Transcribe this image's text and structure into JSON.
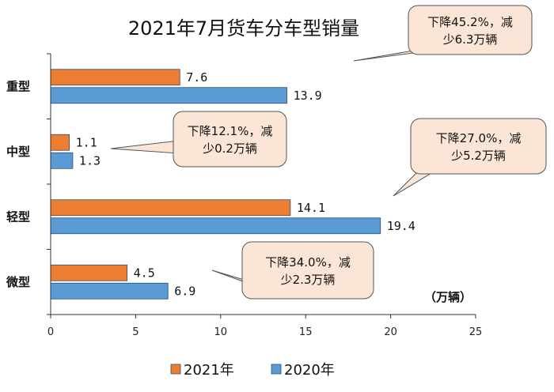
{
  "chart_data": {
    "type": "bar",
    "orientation": "horizontal",
    "title": "2021年7月货车分车型销量",
    "unit": "（万辆）",
    "categories": [
      "重型",
      "中型",
      "轻型",
      "微型"
    ],
    "series": [
      {
        "name": "2021年",
        "values": [
          7.6,
          1.1,
          14.1,
          4.5
        ],
        "value_labels": [
          "7.6",
          "1.1",
          "14.1",
          "4.5"
        ],
        "color": "#ED7D31"
      },
      {
        "name": "2020年",
        "values": [
          13.9,
          1.3,
          19.4,
          6.9
        ],
        "value_labels": [
          "13.9",
          "1.3",
          "19.4",
          "6.9"
        ],
        "color": "#5B9BD5"
      }
    ],
    "xlim": [
      0,
      25
    ],
    "xticks": [
      "0",
      "5",
      "10",
      "15",
      "20",
      "25"
    ],
    "grid": false,
    "legend_position": "bottom",
    "annotations": [
      {
        "category": "重型",
        "line1": "下降45.2%，减",
        "line2": "少6.3万辆"
      },
      {
        "category": "中型",
        "line1": "下降12.1%，减",
        "line2": "少0.2万辆"
      },
      {
        "category": "轻型",
        "line1": "下降27.0%，减",
        "line2": "少5.2万辆"
      },
      {
        "category": "微型",
        "line1": "下降34.0%，减",
        "line2": "少2.3万辆"
      }
    ],
    "callout_fill": "#FBE5D6"
  }
}
